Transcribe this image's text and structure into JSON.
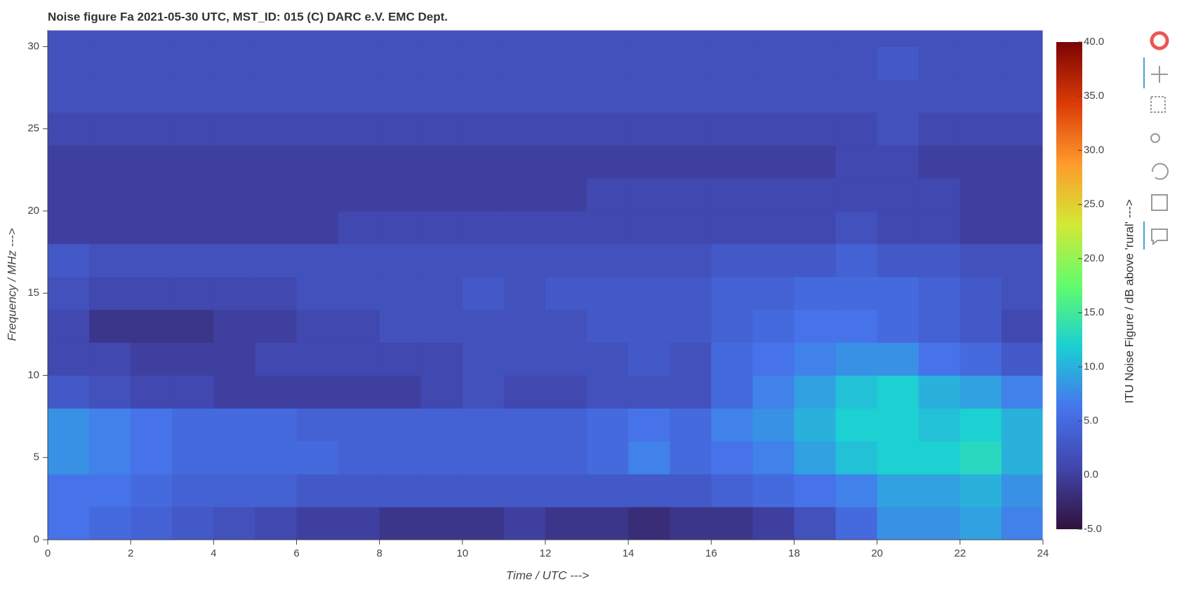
{
  "chart_data": {
    "type": "heatmap",
    "title": "Noise figure Fa  2021-05-30  UTC,  MST_ID:  015   (C) DARC e.V. EMC Dept.",
    "x_label": "Time / UTC --->",
    "y_label": "Frequency / MHz --->",
    "colorbar_label": "ITU Noise Figure / dB above 'rural' --->",
    "xlim": [
      0,
      24
    ],
    "ylim": [
      0,
      31
    ],
    "xticks": [
      0,
      2,
      4,
      6,
      8,
      10,
      12,
      14,
      16,
      18,
      20,
      22,
      24
    ],
    "yticks": [
      0,
      5,
      10,
      15,
      20,
      25,
      30
    ],
    "x_bins": [
      0,
      1,
      2,
      3,
      4,
      5,
      6,
      7,
      8,
      9,
      10,
      11,
      12,
      13,
      14,
      15,
      16,
      17,
      18,
      19,
      20,
      21,
      22,
      23,
      24
    ],
    "y_bins": [
      0,
      2,
      4,
      6,
      8,
      10,
      12,
      14,
      16,
      18,
      20,
      22,
      24,
      26,
      28,
      30,
      31
    ],
    "values": [
      [
        6,
        5,
        4,
        3,
        2,
        1,
        0,
        0,
        -1,
        -1,
        -1,
        0,
        -1,
        -1,
        -2,
        -1,
        -1,
        0,
        2,
        5,
        8,
        8,
        9,
        7
      ],
      [
        6,
        6,
        5,
        4,
        4,
        4,
        3,
        3,
        3,
        3,
        3,
        3,
        3,
        3,
        3,
        3,
        4,
        5,
        6,
        7,
        9,
        9,
        10,
        8
      ],
      [
        8,
        7,
        6,
        5,
        5,
        5,
        5,
        4,
        4,
        4,
        4,
        4,
        4,
        5,
        7,
        5,
        6,
        7,
        9,
        11,
        12,
        12,
        13,
        10
      ],
      [
        8,
        7,
        6,
        5,
        5,
        5,
        4,
        4,
        4,
        4,
        4,
        4,
        4,
        5,
        6,
        5,
        7,
        8,
        10,
        12,
        12,
        11,
        12,
        10
      ],
      [
        3,
        2,
        1,
        1,
        0,
        0,
        0,
        0,
        0,
        1,
        2,
        1,
        1,
        2,
        2,
        2,
        5,
        7,
        9,
        11,
        12,
        10,
        9,
        7
      ],
      [
        1,
        1,
        0,
        0,
        0,
        1,
        1,
        1,
        1,
        1,
        2,
        2,
        2,
        2,
        3,
        2,
        5,
        6,
        7,
        8,
        8,
        6,
        5,
        3
      ],
      [
        1,
        -1,
        -1,
        -1,
        0,
        0,
        1,
        1,
        2,
        2,
        2,
        2,
        2,
        3,
        3,
        3,
        4,
        5,
        6,
        6,
        5,
        4,
        3,
        1
      ],
      [
        2,
        1,
        1,
        1,
        1,
        1,
        2,
        2,
        2,
        2,
        3,
        2,
        3,
        3,
        3,
        3,
        4,
        4,
        5,
        5,
        5,
        4,
        3,
        2
      ],
      [
        3,
        2,
        2,
        2,
        2,
        2,
        2,
        2,
        2,
        2,
        2,
        2,
        2,
        2,
        2,
        2,
        3,
        3,
        3,
        4,
        3,
        3,
        2,
        2
      ],
      [
        0,
        0,
        0,
        0,
        0,
        0,
        0,
        1,
        1,
        1,
        1,
        1,
        1,
        1,
        1,
        1,
        1,
        1,
        1,
        2,
        1,
        1,
        0,
        0
      ],
      [
        0,
        0,
        0,
        0,
        0,
        0,
        0,
        0,
        0,
        0,
        0,
        0,
        0,
        1,
        1,
        1,
        1,
        1,
        1,
        1,
        1,
        1,
        0,
        0
      ],
      [
        0,
        0,
        0,
        0,
        0,
        0,
        0,
        0,
        0,
        0,
        0,
        0,
        0,
        0,
        0,
        0,
        0,
        0,
        0,
        1,
        1,
        0,
        0,
        0
      ],
      [
        1,
        1,
        1,
        1,
        1,
        1,
        1,
        1,
        1,
        1,
        1,
        1,
        1,
        1,
        1,
        1,
        1,
        1,
        1,
        1,
        2,
        1,
        1,
        1
      ],
      [
        2,
        2,
        2,
        2,
        2,
        2,
        2,
        2,
        2,
        2,
        2,
        2,
        2,
        2,
        2,
        2,
        2,
        2,
        2,
        2,
        2,
        2,
        2,
        2
      ],
      [
        2,
        2,
        2,
        2,
        2,
        2,
        2,
        2,
        2,
        2,
        2,
        2,
        2,
        2,
        2,
        2,
        2,
        2,
        2,
        2,
        3,
        2,
        2,
        2
      ],
      [
        2,
        2,
        2,
        2,
        2,
        2,
        2,
        2,
        2,
        2,
        2,
        2,
        2,
        2,
        2,
        2,
        2,
        2,
        2,
        2,
        2,
        2,
        2,
        2
      ]
    ],
    "clim": [
      -5,
      40
    ],
    "cbticks": [
      {
        "value": -5,
        "label": "-5.0"
      },
      {
        "value": 0,
        "label": "0.0"
      },
      {
        "value": 5,
        "label": "5.0"
      },
      {
        "value": 10,
        "label": "10.0"
      },
      {
        "value": 15,
        "label": "15.0"
      },
      {
        "value": 20,
        "label": "20.0"
      },
      {
        "value": 25,
        "label": "25.0"
      },
      {
        "value": 30,
        "label": "30.0"
      },
      {
        "value": 35,
        "label": "35.0"
      },
      {
        "value": 40,
        "label": "40.0"
      }
    ],
    "colormap": [
      "#30123b",
      "#4145ab",
      "#4675ed",
      "#1bcfd4",
      "#61fc6c",
      "#d2e935",
      "#fe9b2d",
      "#db3a07",
      "#7a0403"
    ]
  }
}
